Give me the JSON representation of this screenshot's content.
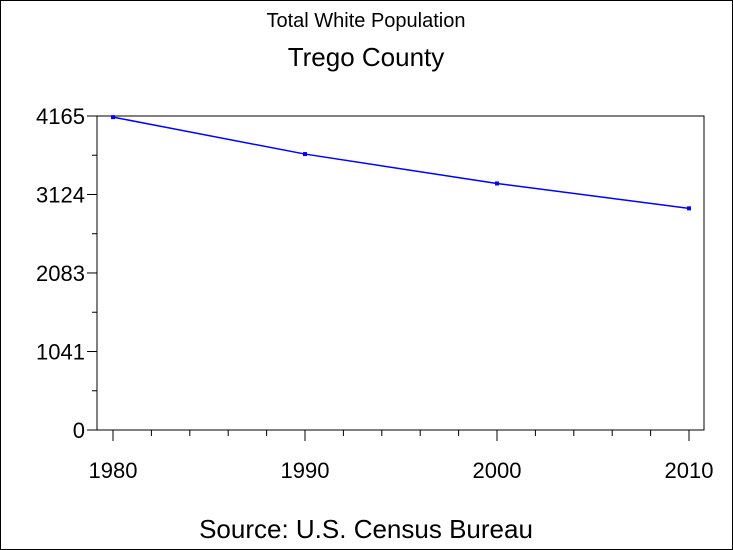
{
  "chart_data": {
    "type": "line",
    "supertitle": "Total White Population",
    "title": "Trego County",
    "footnote": "Source: U.S. Census Bureau",
    "xlabel": "",
    "ylabel": "",
    "x": [
      1980,
      1990,
      2000,
      2010
    ],
    "x_tick_labels": [
      "1980",
      "1990",
      "2000",
      "2010"
    ],
    "y_tick_values": [
      0,
      1041,
      2083,
      3124,
      4165
    ],
    "y_tick_labels": [
      "0",
      "1041",
      "2083",
      "3124",
      "4165"
    ],
    "series": [
      {
        "values": [
          4150,
          3660,
          3270,
          2940
        ]
      }
    ],
    "xlim": [
      1980,
      2010
    ],
    "ylim": [
      0,
      4165
    ],
    "grid": false,
    "legend": "none",
    "line_color": "#0000ff",
    "frame_color": "#000000"
  }
}
